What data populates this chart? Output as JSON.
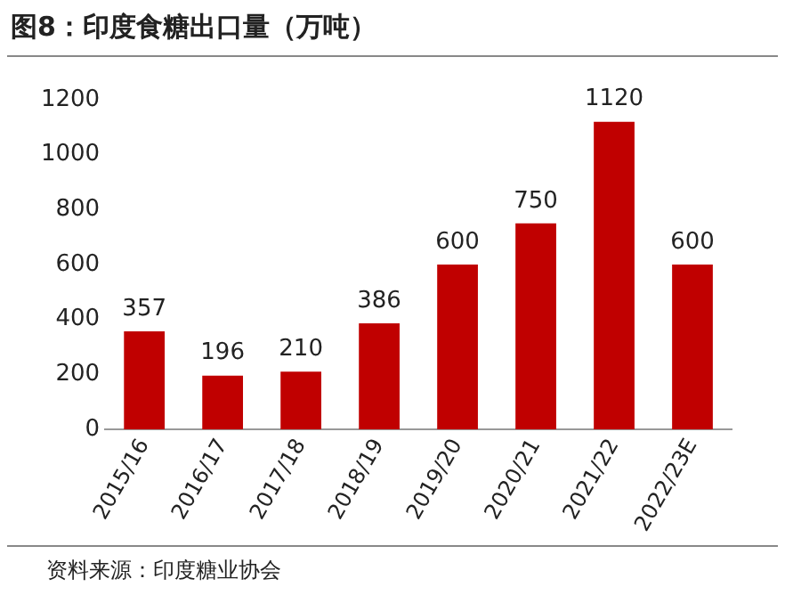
{
  "chart_data": {
    "type": "bar",
    "title": "图8：印度食糖出口量（万吨）",
    "categories": [
      "2015/16",
      "2016/17",
      "2017/18",
      "2018/19",
      "2019/20",
      "2020/21",
      "2021/22",
      "2022/23E"
    ],
    "values": [
      357,
      196,
      210,
      386,
      600,
      750,
      1120,
      600
    ],
    "color": "#c00000",
    "ylim": [
      0,
      1200
    ],
    "yticks": [
      0,
      200,
      400,
      600,
      800,
      1000,
      1200
    ],
    "grid": false,
    "legend": false,
    "data_labels": true,
    "annotations": [
      "资料来源：印度糖业协会"
    ]
  }
}
